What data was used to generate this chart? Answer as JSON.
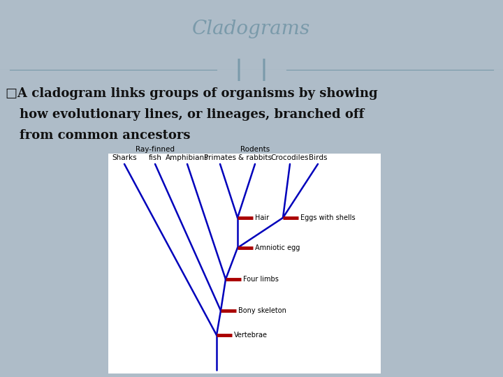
{
  "title": "Cladograms",
  "slide_bg": "#aebcc8",
  "title_bg": "#ffffff",
  "content_bg": "#b8c8d4",
  "cladogram_bg": "#ffffff",
  "clade_line_color": "#0000bb",
  "trait_line_color": "#aa0000",
  "divider_color": "#7a9aaa",
  "title_color": "#7a9aaa",
  "body_text_color": "#111111",
  "taxa": [
    "Sharks",
    "Ray-finned\nfish",
    "Amphibians",
    "Primates",
    "Rodents\n& rabbits",
    "Crocodiles",
    "Birds"
  ],
  "title_fontsize": 20,
  "body_fontsize": 13,
  "taxa_fontsize": 7.5,
  "trait_fontsize": 7
}
